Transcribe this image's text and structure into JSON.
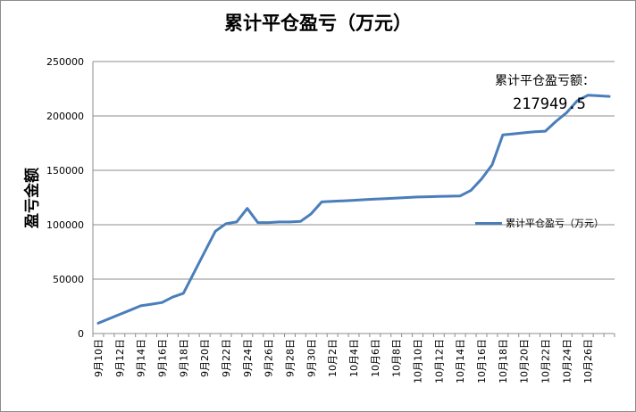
{
  "chart_data": {
    "type": "line",
    "title": "累计平仓盈亏（万元）",
    "ylabel": "盈亏金额",
    "xlabel": "",
    "ylim": [
      0,
      250000
    ],
    "yticks": [
      0,
      50000,
      100000,
      150000,
      200000,
      250000
    ],
    "ytick_labels": [
      "0",
      "50000",
      "100000",
      "150000",
      "200000",
      "250000"
    ],
    "xtick_labels": [
      "9月10日",
      "9月12日",
      "9月14日",
      "9月16日",
      "9月18日",
      "9月20日",
      "9月22日",
      "9月24日",
      "9月26日",
      "9月28日",
      "9月30日",
      "10月2日",
      "10月4日",
      "10月6日",
      "10月8日",
      "10月10日",
      "10月12日",
      "10月14日",
      "10月16日",
      "10月18日",
      "10月20日",
      "10月22日",
      "10月24日",
      "10月26日"
    ],
    "grid": "horizontal",
    "legend_position": "right",
    "series": [
      {
        "name": "累计平仓盈亏（万元）",
        "color": "#4a7ebb",
        "x": [
          0,
          1,
          2,
          3,
          4,
          5,
          6,
          7,
          8,
          9,
          10,
          11,
          12,
          13,
          14,
          15,
          16,
          17,
          18,
          19,
          20,
          21,
          22,
          23,
          24,
          25,
          26,
          27,
          28,
          29,
          30,
          31,
          32,
          33,
          34,
          35,
          36,
          37,
          38,
          39,
          40,
          41,
          42,
          43,
          44,
          45,
          46
        ],
        "values": [
          9500,
          13500,
          17500,
          21500,
          25500,
          27000,
          28500,
          33500,
          37000,
          56000,
          75000,
          94000,
          101000,
          102500,
          115000,
          102000,
          102000,
          102500,
          102500,
          103000,
          110000,
          121000,
          121500,
          122000,
          122500,
          123000,
          123500,
          124000,
          124500,
          125000,
          125500,
          125700,
          126000,
          126200,
          126500,
          131500,
          142000,
          155000,
          182500,
          183500,
          184500,
          185500,
          186000,
          195000,
          203000,
          214000,
          219000
        ],
        "tail_values": [
          218500,
          217949.5
        ]
      }
    ],
    "annotation": {
      "label": "累计平仓盈亏额：",
      "value": "217949.5"
    }
  }
}
